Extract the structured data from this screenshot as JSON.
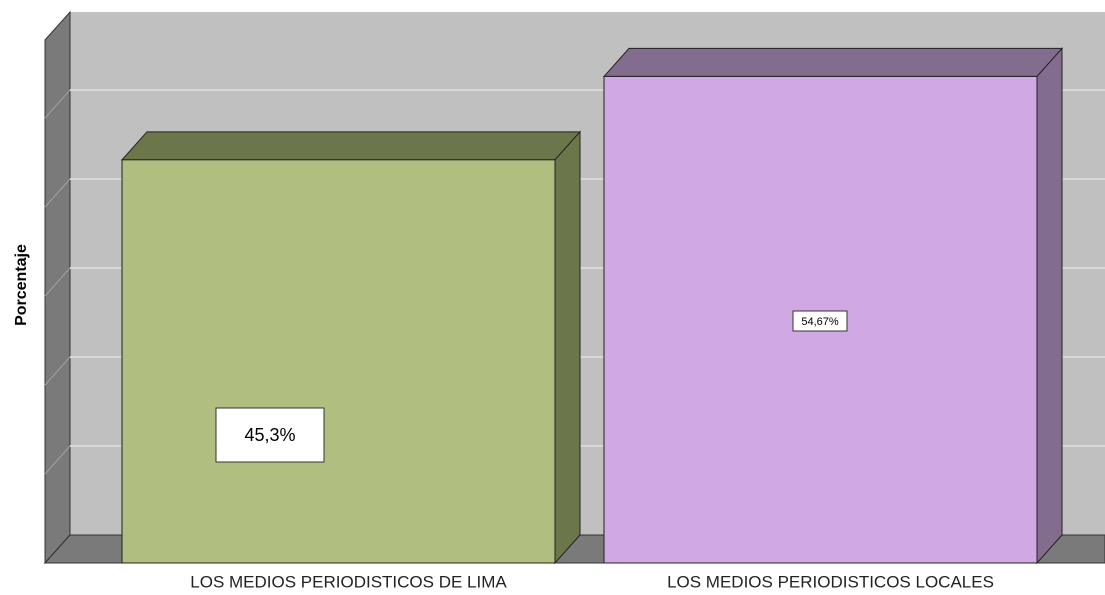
{
  "chart_data": {
    "type": "bar3d",
    "y_label": "Porcentaje",
    "categories": [
      "LOS MEDIOS PERIODISTICOS DE LIMA",
      "LOS MEDIOS PERIODISTICOS LOCALES"
    ],
    "values": [
      45.3,
      54.67
    ],
    "value_labels": [
      "45,3%",
      "54,67%"
    ],
    "colors": [
      "#b0bf80",
      "#d0a8e4"
    ],
    "side_colors": [
      "#6b774b",
      "#826d8e"
    ],
    "ylim": [
      0,
      60
    ],
    "yticks": [
      0,
      10,
      20,
      30,
      40,
      50
    ],
    "grid": true
  }
}
